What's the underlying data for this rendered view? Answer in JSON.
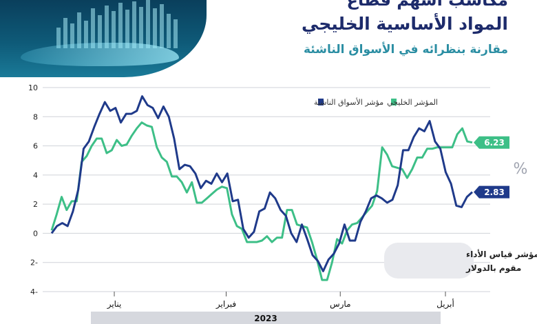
{
  "headline": {
    "line1": "مكاسب أسهم قطاع",
    "line2": "المواد الأساسية الخليجي",
    "line3": "مقارنة بنظرائه في الأسواق الناشئة"
  },
  "chart_data": {
    "type": "line",
    "ylim": [
      -4,
      10
    ],
    "yticks": [
      "10",
      "8",
      "6",
      "4",
      "2",
      "0",
      "2-",
      "4-"
    ],
    "ytick_values": [
      10,
      8,
      6,
      4,
      2,
      0,
      -2,
      -4
    ],
    "months": [
      "يناير",
      "فبراير",
      "مارس",
      "أبريل"
    ],
    "month_positions": [
      0.16,
      0.41,
      0.665,
      0.9
    ],
    "year": "2023",
    "y_unit": "%",
    "note": [
      "مؤشر قياس الأداء",
      "مقوم بالدولار"
    ],
    "series": [
      {
        "name": "مؤشر الأسواق الناشئة",
        "color": "#1f3a8a",
        "end_label": "2.83",
        "values": [
          0.0,
          0.5,
          0.7,
          0.5,
          1.5,
          3.0,
          5.8,
          6.3,
          7.3,
          8.2,
          9.0,
          8.4,
          8.6,
          7.6,
          8.2,
          8.2,
          8.4,
          9.4,
          8.8,
          8.6,
          7.9,
          8.7,
          8.0,
          6.5,
          4.4,
          4.7,
          4.6,
          4.1,
          3.1,
          3.6,
          3.4,
          4.1,
          3.5,
          4.1,
          2.2,
          2.3,
          0.3,
          -0.3,
          0.1,
          1.5,
          1.7,
          2.8,
          2.4,
          1.6,
          1.2,
          0.0,
          -0.6,
          0.6,
          -0.4,
          -1.5,
          -1.9,
          -2.6,
          -1.8,
          -1.4,
          -0.7,
          0.6,
          -0.5,
          -0.5,
          0.8,
          1.5,
          2.4,
          2.6,
          2.4,
          2.1,
          2.3,
          3.3,
          5.7,
          5.7,
          6.6,
          7.2,
          7.0,
          7.7,
          6.3,
          5.8,
          4.2,
          3.4,
          1.9,
          1.8,
          2.5,
          2.83
        ]
      },
      {
        "name": "المؤشر الخليجي",
        "color": "#3dbf87",
        "end_label": "6.23",
        "values": [
          0.2,
          1.3,
          2.5,
          1.6,
          2.2,
          2.2,
          4.9,
          5.3,
          6.0,
          6.5,
          6.5,
          5.5,
          5.7,
          6.4,
          6.0,
          6.1,
          6.7,
          7.2,
          7.6,
          7.4,
          7.3,
          5.9,
          5.2,
          4.9,
          3.9,
          3.9,
          3.5,
          2.8,
          3.5,
          2.1,
          2.1,
          2.4,
          2.7,
          3.0,
          3.2,
          3.1,
          1.3,
          0.5,
          0.3,
          -0.6,
          -0.6,
          -0.6,
          -0.5,
          -0.2,
          -0.6,
          -0.3,
          -0.3,
          1.6,
          1.6,
          0.6,
          0.5,
          0.4,
          -0.6,
          -1.8,
          -3.2,
          -3.2,
          -2.0,
          -0.4,
          -0.7,
          0.2,
          0.6,
          0.7,
          1.1,
          1.5,
          1.9,
          2.9,
          5.9,
          5.4,
          4.6,
          4.5,
          4.4,
          3.8,
          4.4,
          5.2,
          5.2,
          5.8,
          5.8,
          5.9,
          5.9,
          5.9,
          5.9,
          6.8,
          7.2,
          6.3,
          6.23
        ]
      }
    ]
  }
}
